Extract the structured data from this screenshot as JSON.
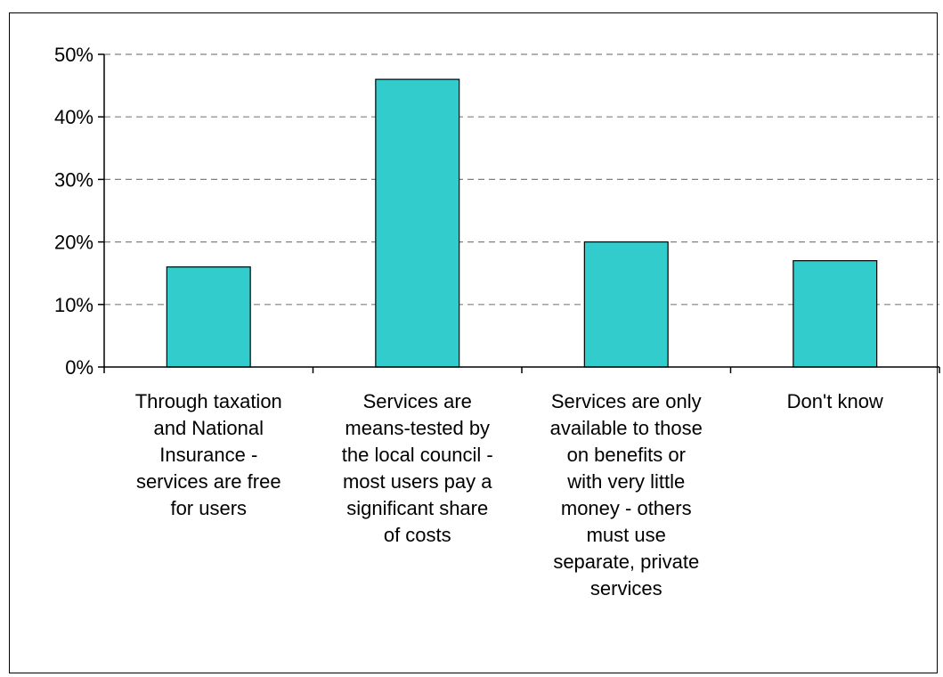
{
  "chart_data": {
    "type": "bar",
    "categories": [
      "Through taxation\nand National\nInsurance -\nservices are free\nfor users",
      "Services are\nmeans-tested by\nthe local council -\nmost users pay a\nsignificant share\nof costs",
      "Services are only\navailable to those\non benefits or\nwith very little\nmoney - others\nmust use\nseparate, private\nservices",
      "Don't know"
    ],
    "values": [
      16,
      46,
      20,
      17
    ],
    "ylim": [
      0,
      50
    ],
    "yticks": [
      0,
      10,
      20,
      30,
      40,
      50
    ],
    "ytick_labels": [
      "0%",
      "10%",
      "20%",
      "30%",
      "40%",
      "50%"
    ],
    "grid": "horizontal dashed",
    "legend": "none",
    "bar_color": "#33CCCC"
  }
}
